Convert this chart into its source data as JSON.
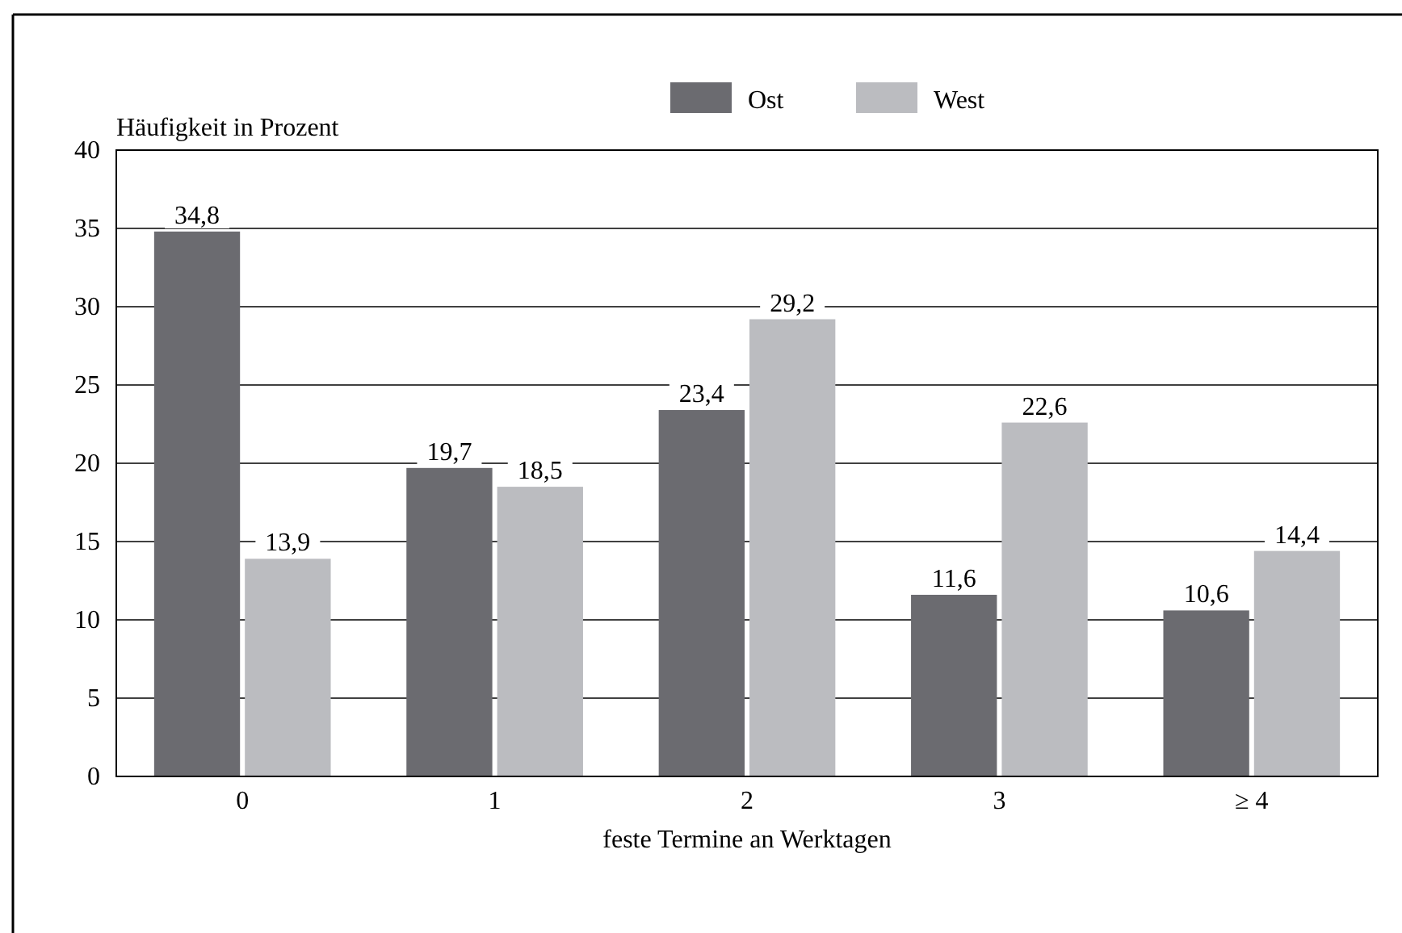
{
  "chart_data": {
    "type": "bar",
    "xlabel": "feste Termine an Werktagen",
    "ylabel": "Häufigkeit in Prozent",
    "categories": [
      "0",
      "1",
      "2",
      "3",
      "≥ 4"
    ],
    "series": [
      {
        "name": "Ost",
        "color": "#6b6b70",
        "values": [
          34.8,
          19.7,
          23.4,
          11.6,
          10.6
        ],
        "value_labels": [
          "34,8",
          "19,7",
          "23,4",
          "11,6",
          "10,6"
        ]
      },
      {
        "name": "West",
        "color": "#bbbcc0",
        "values": [
          13.9,
          18.5,
          29.2,
          22.6,
          14.4
        ],
        "value_labels": [
          "13,9",
          "18,5",
          "29,2",
          "22,6",
          "14,4"
        ]
      }
    ],
    "ylim": [
      0,
      40
    ],
    "yticks": [
      0,
      5,
      10,
      15,
      20,
      25,
      30,
      35,
      40
    ],
    "grid": "y",
    "legend": "top"
  }
}
